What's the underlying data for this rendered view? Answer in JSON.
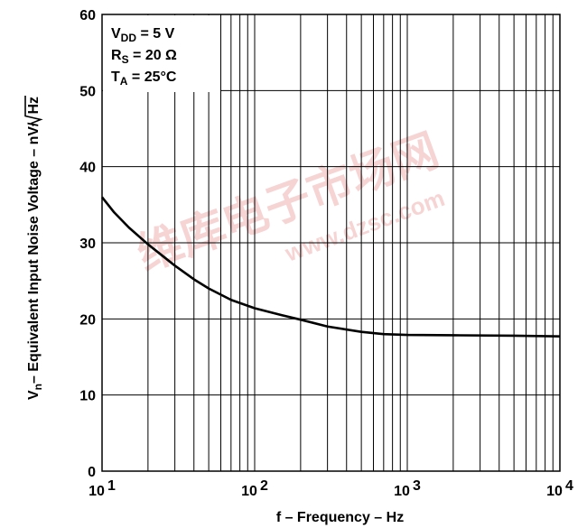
{
  "watermark": {
    "text_cn": "维库电子市场网",
    "text_url": "www.dzsc.com",
    "color": "#f4c6c6"
  },
  "chart_data": {
    "type": "line",
    "title": "",
    "xscale": "log",
    "xlim": [
      10,
      10000
    ],
    "ylim": [
      0,
      60
    ],
    "yticks": [
      0,
      10,
      20,
      30,
      40,
      50,
      60
    ],
    "grid": true,
    "xlabel": "f – Frequency – Hz",
    "ylabel": {
      "prefix": "V",
      "sub": "n",
      "rest": "– Equivalent Input Noise Voltage – nV/",
      "sqrt": "Hz"
    },
    "xticks": [
      {
        "value": 10,
        "base": "10",
        "exp": "1"
      },
      {
        "value": 100,
        "base": "10",
        "exp": "2"
      },
      {
        "value": 1000,
        "base": "10",
        "exp": "3"
      },
      {
        "value": 10000,
        "base": "10",
        "exp": "4"
      }
    ],
    "conditions": [
      {
        "main": "V",
        "sub": "DD",
        "rest": " = 5 V"
      },
      {
        "main": "R",
        "sub": "S",
        "rest": " = 20 Ω"
      },
      {
        "main": "T",
        "sub": "A",
        "rest": " = 25°C"
      }
    ],
    "series": [
      {
        "x": [
          10,
          12,
          15,
          20,
          30,
          40,
          50,
          70,
          100,
          150,
          200,
          300,
          500,
          700,
          1000,
          2000,
          5000,
          10000
        ],
        "y": [
          36.0,
          34.0,
          32.0,
          29.8,
          27.0,
          25.2,
          24.0,
          22.5,
          21.4,
          20.5,
          19.9,
          19.0,
          18.3,
          18.0,
          17.9,
          17.85,
          17.8,
          17.7
        ]
      }
    ]
  }
}
